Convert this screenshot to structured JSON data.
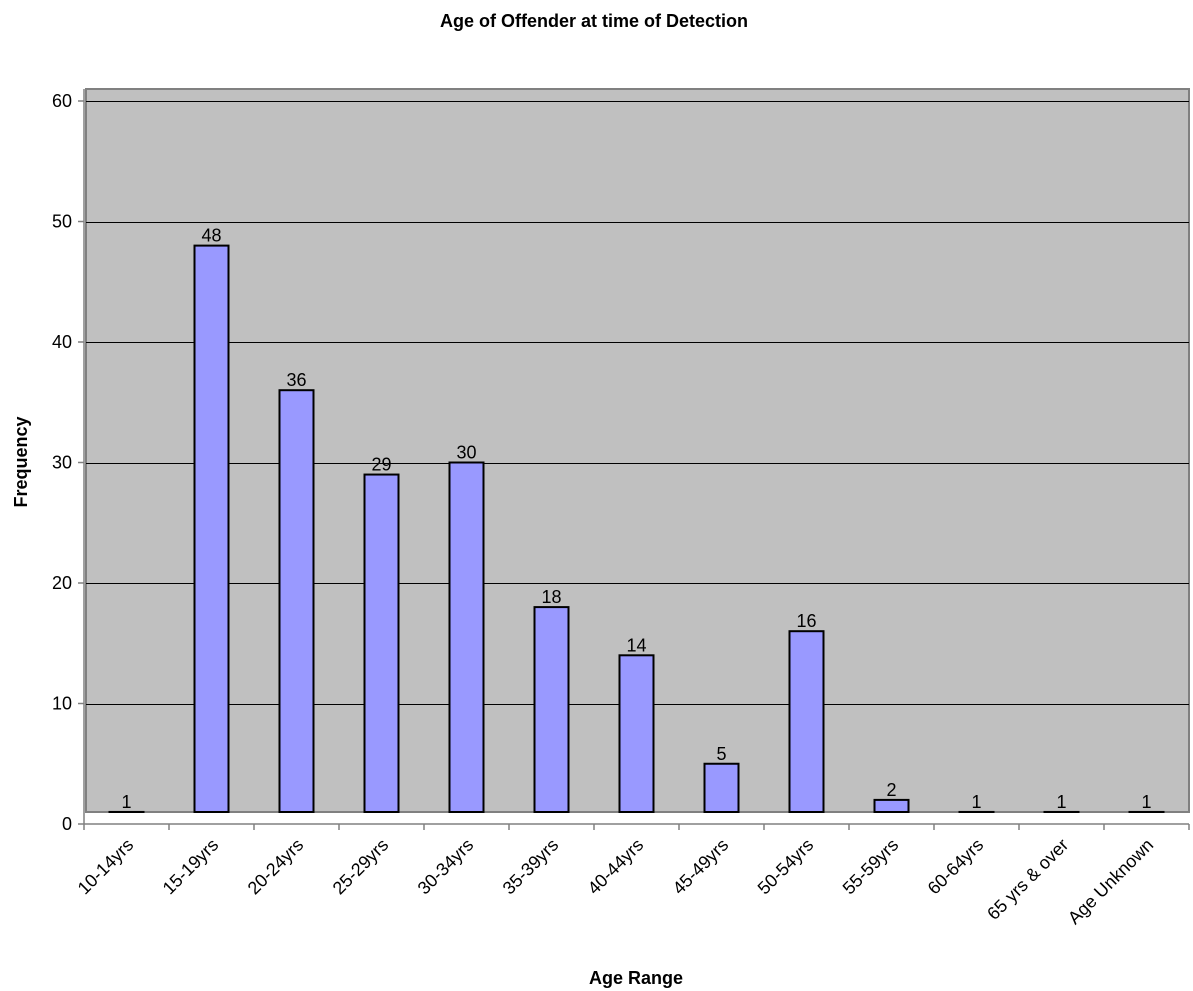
{
  "chart_data": {
    "type": "bar",
    "title": "Age of Offender at time of Detection",
    "xlabel": "Age Range",
    "ylabel": "Frequency",
    "categories": [
      "10-14yrs",
      "15-19yrs",
      "20-24yrs",
      "25-29yrs",
      "30-34yrs",
      "35-39yrs",
      "40-44yrs",
      "45-49yrs",
      "50-54yrs",
      "55-59yrs",
      "60-64yrs",
      "65 yrs & over",
      "Age Unknown"
    ],
    "values": [
      1,
      48,
      36,
      29,
      30,
      18,
      14,
      5,
      16,
      2,
      1,
      1,
      1
    ],
    "data_labels": [
      "1",
      "48",
      "36",
      "29",
      "30",
      "18",
      "14",
      "5",
      "16",
      "2",
      "1",
      "1",
      "1"
    ],
    "ylim": [
      0,
      60
    ],
    "yticks": [
      0,
      10,
      20,
      30,
      40,
      50,
      60
    ],
    "grid": true,
    "legend": "none",
    "colors": {
      "bar_fill": "#9999ff",
      "bar_stroke": "#000000",
      "plot_background": "#c0c0c0",
      "gridline": "#000000",
      "axis": "#808080"
    }
  }
}
